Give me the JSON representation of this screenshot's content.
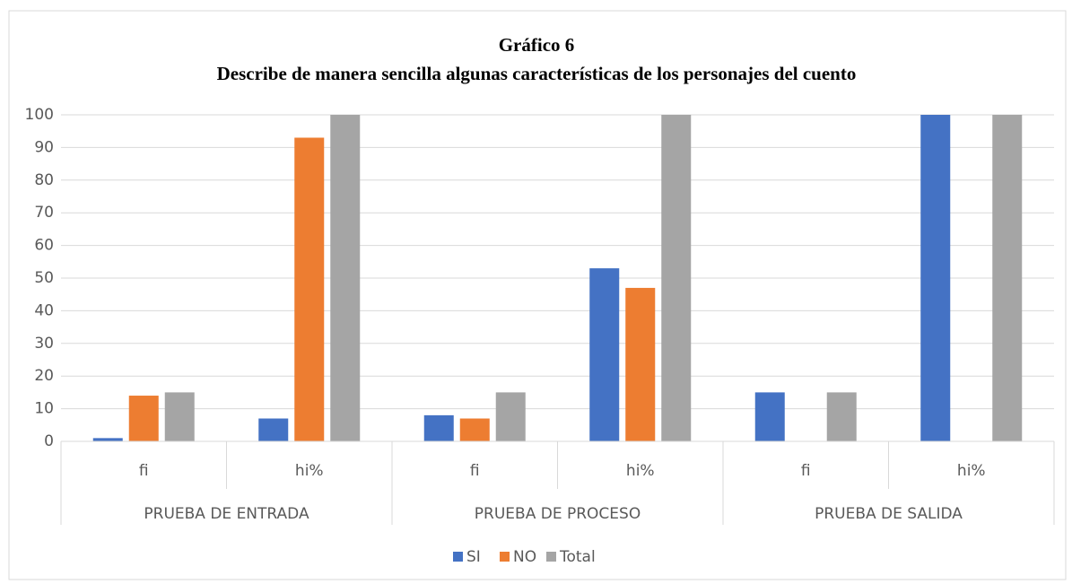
{
  "chart_data": {
    "type": "bar",
    "title": "Gráfico 6",
    "subtitle": "Describe de manera sencilla algunas características de los personajes del cuento",
    "categories": [
      "fi",
      "hi%",
      "fi",
      "hi%",
      "fi",
      "hi%"
    ],
    "groups": [
      "PRUEBA DE ENTRADA",
      "PRUEBA DE PROCESO",
      "PRUEBA DE SALIDA"
    ],
    "series": [
      {
        "name": "SI",
        "color": "#4472c4",
        "values": [
          1,
          7,
          8,
          53,
          15,
          100
        ]
      },
      {
        "name": "NO",
        "color": "#ed7d31",
        "values": [
          14,
          93,
          7,
          47,
          0,
          0
        ]
      },
      {
        "name": "Total",
        "color": "#a5a5a5",
        "values": [
          15,
          100,
          15,
          100,
          15,
          100
        ]
      }
    ],
    "ylim": [
      0,
      100
    ],
    "yticks": [
      0,
      10,
      20,
      30,
      40,
      50,
      60,
      70,
      80,
      90,
      100
    ],
    "grid": true,
    "legend": "bottom"
  }
}
